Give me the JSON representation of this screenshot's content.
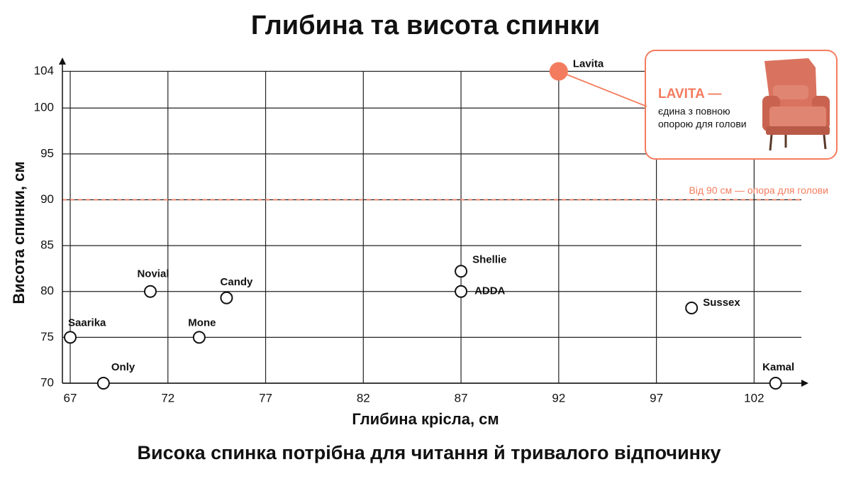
{
  "chart_data": {
    "type": "scatter",
    "title": "Глибина та висота спинки",
    "subtitle": "Висока спинка потрібна для читання й тривалого відпочинку",
    "x_label": "Глибина крісла, см",
    "y_label": "Висота спинки, см",
    "labels": [
      "Lavita",
      "Saarika",
      "Only",
      "Novial",
      "Mone",
      "Candy",
      "Shellie",
      "ADDA",
      "Sussex",
      "Kamal"
    ],
    "x": [
      92,
      67,
      68.7,
      71.1,
      73.6,
      75,
      87,
      87,
      98.8,
      103.1
    ],
    "values": [
      104,
      75,
      70,
      80,
      75,
      79.3,
      82.2,
      80,
      78.2,
      70
    ],
    "highlight_color": "#f47c5e",
    "xlim": [
      66.6,
      104.6
    ],
    "ylim": [
      70,
      105.2
    ],
    "xticks": [
      67,
      72,
      77,
      82,
      87,
      92,
      97,
      102
    ],
    "yticks": [
      70,
      75,
      80,
      85,
      90,
      95,
      100,
      104
    ],
    "grid": true,
    "reference_line": {
      "value": 90,
      "label": "Від 90 см — опора для голови"
    },
    "callout": {
      "title": "LAVITA —",
      "lines": [
        "єдина з повною",
        "опорою для голови"
      ]
    }
  }
}
